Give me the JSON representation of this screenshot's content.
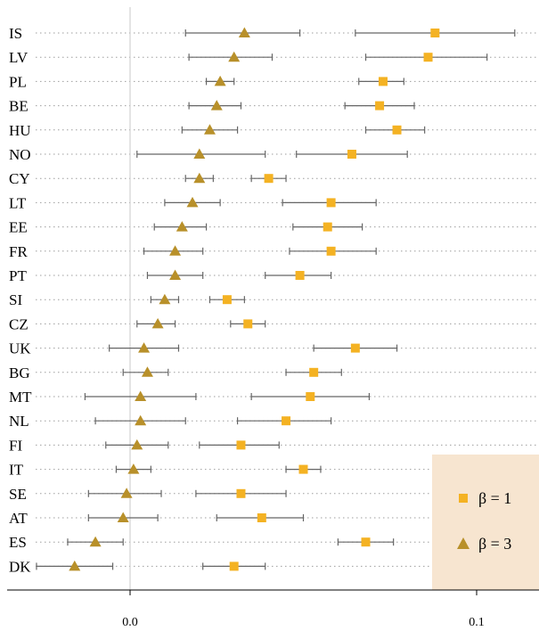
{
  "chart_data": {
    "type": "scatter",
    "title": "",
    "xlabel": "",
    "ylabel": "",
    "xlim": [
      -0.028,
      0.118
    ],
    "xticks": [
      0.0,
      0.1
    ],
    "xtick_labels": [
      "0.0",
      "0.1"
    ],
    "grid": "dotted horizontal lines",
    "legend_position": "bottom-right",
    "categories": [
      "IS",
      "LV",
      "PL",
      "BE",
      "HU",
      "NO",
      "CY",
      "LT",
      "EE",
      "FR",
      "PT",
      "SI",
      "CZ",
      "UK",
      "BG",
      "MT",
      "NL",
      "FI",
      "IT",
      "SE",
      "AT",
      "ES",
      "DK"
    ],
    "series": [
      {
        "name": "β = 1",
        "marker": "square",
        "color": "#F4B223",
        "values": [
          0.088,
          0.086,
          0.073,
          0.072,
          0.077,
          0.064,
          0.04,
          0.058,
          0.057,
          0.058,
          0.049,
          0.028,
          0.034,
          0.065,
          0.053,
          0.052,
          0.045,
          0.032,
          0.05,
          0.032,
          0.038,
          0.068,
          0.03
        ],
        "lower": [
          0.065,
          0.068,
          0.066,
          0.062,
          0.068,
          0.048,
          0.035,
          0.044,
          0.047,
          0.046,
          0.039,
          0.023,
          0.029,
          0.053,
          0.045,
          0.035,
          0.031,
          0.02,
          0.045,
          0.019,
          0.025,
          0.06,
          0.021
        ],
        "upper": [
          0.111,
          0.103,
          0.079,
          0.082,
          0.085,
          0.08,
          0.045,
          0.071,
          0.067,
          0.071,
          0.058,
          0.033,
          0.039,
          0.077,
          0.061,
          0.069,
          0.058,
          0.043,
          0.055,
          0.045,
          0.05,
          0.076,
          0.039
        ]
      },
      {
        "name": "β = 3",
        "marker": "triangle",
        "color": "#B8902A",
        "values": [
          0.033,
          0.03,
          0.026,
          0.025,
          0.023,
          0.02,
          0.02,
          0.018,
          0.015,
          0.013,
          0.013,
          0.01,
          0.008,
          0.004,
          0.005,
          0.003,
          0.003,
          0.002,
          0.001,
          -0.001,
          -0.002,
          -0.01,
          -0.016
        ],
        "lower": [
          0.016,
          0.017,
          0.022,
          0.017,
          0.015,
          0.002,
          0.016,
          0.01,
          0.007,
          0.004,
          0.005,
          0.006,
          0.002,
          -0.006,
          -0.002,
          -0.013,
          -0.01,
          -0.007,
          -0.004,
          -0.012,
          -0.012,
          -0.018,
          -0.027
        ],
        "upper": [
          0.049,
          0.041,
          0.03,
          0.032,
          0.031,
          0.039,
          0.024,
          0.026,
          0.022,
          0.021,
          0.021,
          0.014,
          0.013,
          0.014,
          0.011,
          0.019,
          0.016,
          0.011,
          0.006,
          0.009,
          0.008,
          -0.002,
          -0.005
        ]
      }
    ],
    "legend": [
      {
        "label": "β = 1",
        "marker": "square"
      },
      {
        "label": "β = 3",
        "marker": "triangle"
      }
    ],
    "colors": {
      "legend_background": "#F7E5D0",
      "error_bar": "#666666",
      "grid": "#9E9E9E",
      "zero_line": "#C8C8C8"
    }
  }
}
